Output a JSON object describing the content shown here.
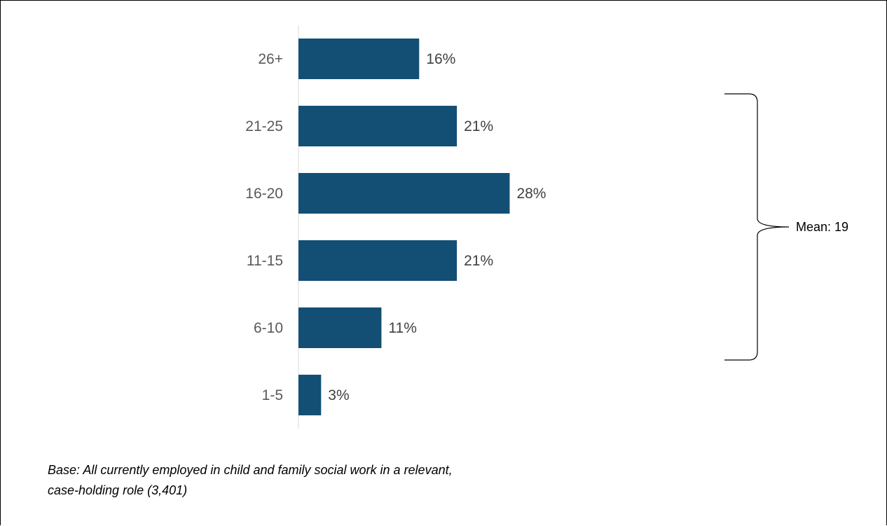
{
  "chart_data": {
    "type": "bar",
    "orientation": "horizontal",
    "categories": [
      "26+",
      "21-25",
      "16-20",
      "11-15",
      "6-10",
      "1-5"
    ],
    "values": [
      16,
      21,
      28,
      21,
      11,
      3
    ],
    "value_labels": [
      "16%",
      "21%",
      "28%",
      "21%",
      "11%",
      "3%"
    ],
    "unit": "%",
    "xlim": [
      0,
      60
    ],
    "grid": false,
    "bar_color": "#134F74",
    "annotation": {
      "text": "Mean: 19",
      "brace_spans_categories": [
        "21-25",
        "16-20",
        "11-15",
        "6-10"
      ]
    }
  },
  "footnote": {
    "line1": "Base: All currently employed in child and family social work in a relevant,",
    "line2": "case-holding role (3,401)"
  }
}
